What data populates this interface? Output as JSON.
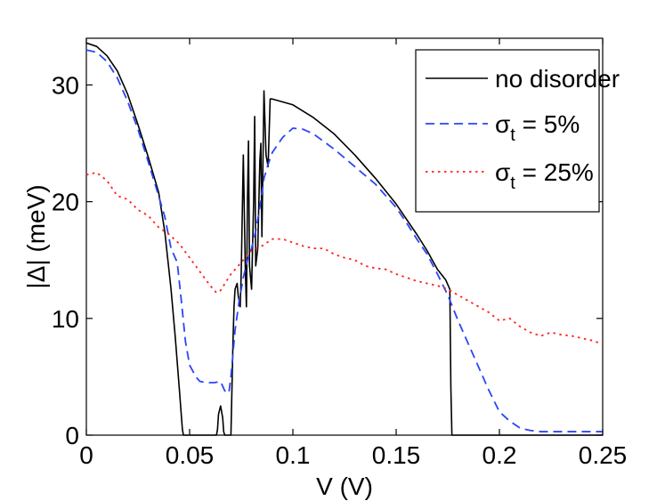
{
  "chart_data": {
    "type": "line",
    "title": "",
    "xlabel": "V (V)",
    "ylabel": "|Δ| (meV)",
    "xlim": [
      0,
      0.25
    ],
    "ylim": [
      0,
      34
    ],
    "xticks": [
      0,
      0.05,
      0.1,
      0.15,
      0.2,
      0.25
    ],
    "xtick_labels": [
      "0",
      "0.05",
      "0.1",
      "0.15",
      "0.2",
      "0.25"
    ],
    "yticks": [
      0,
      10,
      20,
      30
    ],
    "ytick_labels": [
      "0",
      "10",
      "20",
      "30"
    ],
    "grid": false,
    "legend_position": "top-right",
    "series": [
      {
        "name": "no disorder",
        "legend_prefix": "no disorder",
        "legend_subscript": "",
        "legend_suffix": "",
        "color": "#000000",
        "dash": "solid",
        "x": [
          0,
          0.005,
          0.01,
          0.015,
          0.02,
          0.025,
          0.03,
          0.035,
          0.038,
          0.041,
          0.043,
          0.045,
          0.0465,
          0.047,
          0.0475,
          0.063,
          0.0635,
          0.064,
          0.065,
          0.066,
          0.0665,
          0.067,
          0.07,
          0.0705,
          0.071,
          0.0715,
          0.072,
          0.073,
          0.0735,
          0.0745,
          0.075,
          0.0755,
          0.076,
          0.077,
          0.0775,
          0.078,
          0.0785,
          0.079,
          0.08,
          0.081,
          0.0815,
          0.082,
          0.083,
          0.084,
          0.0845,
          0.085,
          0.086,
          0.087,
          0.088,
          0.089,
          0.09,
          0.1,
          0.11,
          0.12,
          0.13,
          0.14,
          0.15,
          0.16,
          0.165,
          0.17,
          0.174,
          0.176,
          0.1765,
          0.177,
          0.185,
          0.25
        ],
        "y": [
          33.6,
          33.3,
          32.5,
          31.2,
          29.2,
          26.6,
          23.8,
          20.8,
          17.4,
          12.5,
          8.5,
          4.0,
          0.5,
          0,
          0,
          0,
          0.5,
          1.8,
          2.5,
          1.5,
          0.3,
          0,
          0,
          4.0,
          8.0,
          11.0,
          12.5,
          13.0,
          12.0,
          11.0,
          14.0,
          19.0,
          24.0,
          14.0,
          11.0,
          20.0,
          25.2,
          14.5,
          12.5,
          20.0,
          27.3,
          14.5,
          16.0,
          23.5,
          25.0,
          17.0,
          29.5,
          24.0,
          23.0,
          28.8,
          28.8,
          28.3,
          27.2,
          25.8,
          24.0,
          22.0,
          19.8,
          17.2,
          15.8,
          14.2,
          13.3,
          12.5,
          4.0,
          0,
          0,
          0
        ]
      },
      {
        "name": "σt = 5%",
        "legend_prefix": "σ",
        "legend_subscript": "t",
        "legend_suffix": " = 5%",
        "color": "#2b45f5",
        "dash": "dashed",
        "x": [
          0,
          0.005,
          0.01,
          0.015,
          0.02,
          0.025,
          0.03,
          0.035,
          0.038,
          0.041,
          0.044,
          0.046,
          0.048,
          0.05,
          0.053,
          0.055,
          0.058,
          0.062,
          0.065,
          0.067,
          0.069,
          0.07,
          0.072,
          0.074,
          0.076,
          0.078,
          0.079,
          0.08,
          0.082,
          0.084,
          0.086,
          0.088,
          0.09,
          0.095,
          0.1,
          0.105,
          0.11,
          0.12,
          0.13,
          0.14,
          0.15,
          0.155,
          0.16,
          0.165,
          0.17,
          0.175,
          0.18,
          0.185,
          0.19,
          0.195,
          0.2,
          0.205,
          0.21,
          0.215,
          0.22,
          0.25
        ],
        "y": [
          33.0,
          32.8,
          32.0,
          30.6,
          28.6,
          26.2,
          23.4,
          20.5,
          18.7,
          16.0,
          14.8,
          11.5,
          8.0,
          6.0,
          5.0,
          4.6,
          4.5,
          4.5,
          4.6,
          3.8,
          3.6,
          5.0,
          9.0,
          11.5,
          13.5,
          15.0,
          15.5,
          16.0,
          17.5,
          19.5,
          22.0,
          23.2,
          24.2,
          25.5,
          26.3,
          26.2,
          25.8,
          24.5,
          23.0,
          21.5,
          19.5,
          18.2,
          16.8,
          15.5,
          13.8,
          12.0,
          9.8,
          7.8,
          5.8,
          3.8,
          2.0,
          1.2,
          0.6,
          0.4,
          0.3,
          0.3
        ]
      },
      {
        "name": "σt = 25%",
        "legend_prefix": "σ",
        "legend_subscript": "t",
        "legend_suffix": " = 25%",
        "color": "#ff2020",
        "dash": "dotted",
        "x": [
          0,
          0.005,
          0.01,
          0.015,
          0.02,
          0.025,
          0.03,
          0.035,
          0.04,
          0.045,
          0.05,
          0.055,
          0.06,
          0.063,
          0.065,
          0.07,
          0.075,
          0.08,
          0.085,
          0.09,
          0.095,
          0.1,
          0.105,
          0.11,
          0.115,
          0.12,
          0.125,
          0.13,
          0.135,
          0.14,
          0.145,
          0.15,
          0.155,
          0.16,
          0.165,
          0.17,
          0.175,
          0.18,
          0.185,
          0.19,
          0.195,
          0.2,
          0.205,
          0.21,
          0.215,
          0.22,
          0.225,
          0.23,
          0.235,
          0.24,
          0.245,
          0.25
        ],
        "y": [
          22.3,
          22.5,
          21.8,
          20.5,
          20.2,
          19.3,
          18.8,
          17.8,
          17.2,
          16.4,
          15.2,
          14.0,
          12.8,
          12.2,
          12.4,
          13.8,
          14.8,
          15.8,
          16.2,
          16.8,
          16.8,
          16.5,
          16.2,
          16.0,
          16.0,
          15.5,
          15.2,
          15.0,
          14.5,
          14.3,
          14.2,
          13.8,
          13.5,
          13.2,
          13.0,
          12.8,
          12.5,
          12.0,
          11.5,
          11.0,
          10.5,
          9.8,
          10.0,
          9.3,
          8.8,
          8.5,
          8.8,
          8.6,
          8.5,
          8.3,
          8.1,
          7.8
        ]
      }
    ]
  }
}
